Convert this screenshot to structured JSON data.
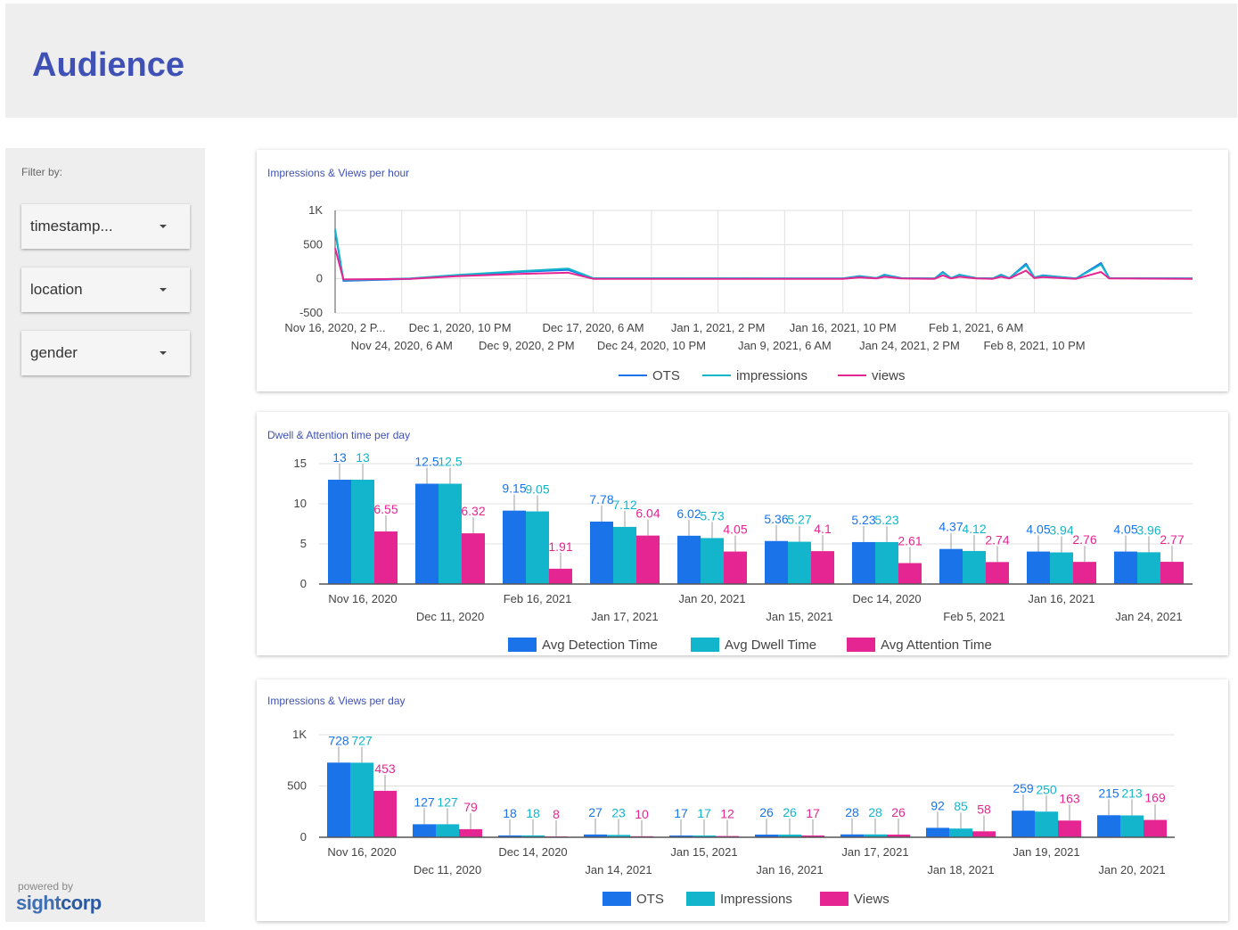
{
  "page": {
    "title": "Audience"
  },
  "sidebar": {
    "filter_label": "Filter by:",
    "filters": [
      {
        "label": "timestamp..."
      },
      {
        "label": "location"
      },
      {
        "label": "gender"
      }
    ],
    "powered_by": "powered by",
    "logo": {
      "part1": "sight",
      "part2": "corp"
    }
  },
  "colors": {
    "blue": "#1a73e8",
    "teal": "#12b5cb",
    "pink": "#e52592",
    "title": "#3f51b5"
  },
  "chart_data": [
    {
      "type": "line",
      "title": "Impressions & Views per hour",
      "y_ticks": [
        "1K",
        "500",
        "0",
        "-500"
      ],
      "ylim": [
        -500,
        1000
      ],
      "x_ticks_row1": [
        "Nov 16, 2020, 2 P...",
        "Dec 1, 2020, 10 PM",
        "Dec 17, 2020, 6 AM",
        "Jan 1, 2021, 2 PM",
        "Jan 16, 2021, 10 PM",
        "Feb 1, 2021, 6 AM"
      ],
      "x_ticks_row2": [
        "Nov 24, 2020, 6 AM",
        "Dec 9, 2020, 2 PM",
        "Dec 24, 2020, 10 PM",
        "Jan 9, 2021, 6 AM",
        "Jan 24, 2021, 2 PM",
        "Feb 8, 2021, 10 PM"
      ],
      "x_label_dates": [
        "2020-11-16",
        "2020-11-24",
        "2020-12-01",
        "2020-12-09",
        "2020-12-17",
        "2020-12-24",
        "2021-01-01",
        "2021-01-09",
        "2021-01-16",
        "2021-01-24",
        "2021-02-01",
        "2021-02-08"
      ],
      "grid": true,
      "legend": "bottom",
      "series": [
        {
          "name": "OTS",
          "color": "#1a73e8",
          "points": [
            [
              "2020-11-16",
              700
            ],
            [
              "2020-11-17",
              -30
            ],
            [
              "2020-11-25",
              0
            ],
            [
              "2020-12-01",
              50
            ],
            [
              "2020-12-08",
              100
            ],
            [
              "2020-12-14",
              130
            ],
            [
              "2020-12-17",
              5
            ],
            [
              "2021-01-16",
              5
            ],
            [
              "2021-01-18",
              40
            ],
            [
              "2021-01-20",
              10
            ],
            [
              "2021-01-21",
              60
            ],
            [
              "2021-01-23",
              10
            ],
            [
              "2021-01-27",
              5
            ],
            [
              "2021-01-28",
              100
            ],
            [
              "2021-01-29",
              10
            ],
            [
              "2021-01-30",
              60
            ],
            [
              "2021-02-01",
              10
            ],
            [
              "2021-02-03",
              5
            ],
            [
              "2021-02-04",
              60
            ],
            [
              "2021-02-05",
              10
            ],
            [
              "2021-02-07",
              220
            ],
            [
              "2021-02-08",
              20
            ],
            [
              "2021-02-09",
              50
            ],
            [
              "2021-02-13",
              5
            ],
            [
              "2021-02-16",
              230
            ],
            [
              "2021-02-17",
              10
            ],
            [
              "2021-02-27",
              5
            ]
          ]
        },
        {
          "name": "impressions",
          "color": "#12b5cb",
          "points": [
            [
              "2020-11-16",
              727
            ],
            [
              "2020-11-17",
              -20
            ],
            [
              "2020-11-25",
              5
            ],
            [
              "2020-12-01",
              60
            ],
            [
              "2020-12-08",
              110
            ],
            [
              "2020-12-14",
              150
            ],
            [
              "2020-12-17",
              10
            ],
            [
              "2021-01-16",
              5
            ],
            [
              "2021-01-18",
              35
            ],
            [
              "2021-01-20",
              10
            ],
            [
              "2021-01-21",
              55
            ],
            [
              "2021-01-23",
              10
            ],
            [
              "2021-01-27",
              5
            ],
            [
              "2021-01-28",
              90
            ],
            [
              "2021-01-29",
              10
            ],
            [
              "2021-01-30",
              55
            ],
            [
              "2021-02-01",
              10
            ],
            [
              "2021-02-03",
              5
            ],
            [
              "2021-02-04",
              55
            ],
            [
              "2021-02-05",
              10
            ],
            [
              "2021-02-07",
              200
            ],
            [
              "2021-02-08",
              20
            ],
            [
              "2021-02-09",
              45
            ],
            [
              "2021-02-13",
              5
            ],
            [
              "2021-02-16",
              210
            ],
            [
              "2021-02-17",
              10
            ],
            [
              "2021-02-27",
              5
            ]
          ]
        },
        {
          "name": "views",
          "color": "#e52592",
          "points": [
            [
              "2020-11-16",
              450
            ],
            [
              "2020-11-17",
              -10
            ],
            [
              "2020-11-25",
              0
            ],
            [
              "2020-12-01",
              40
            ],
            [
              "2020-12-08",
              70
            ],
            [
              "2020-12-14",
              90
            ],
            [
              "2020-12-17",
              0
            ],
            [
              "2021-01-16",
              0
            ],
            [
              "2021-01-18",
              20
            ],
            [
              "2021-01-20",
              5
            ],
            [
              "2021-01-21",
              30
            ],
            [
              "2021-01-23",
              5
            ],
            [
              "2021-01-27",
              0
            ],
            [
              "2021-01-28",
              50
            ],
            [
              "2021-01-29",
              5
            ],
            [
              "2021-01-30",
              30
            ],
            [
              "2021-02-01",
              5
            ],
            [
              "2021-02-03",
              0
            ],
            [
              "2021-02-04",
              30
            ],
            [
              "2021-02-05",
              5
            ],
            [
              "2021-02-07",
              120
            ],
            [
              "2021-02-08",
              10
            ],
            [
              "2021-02-09",
              25
            ],
            [
              "2021-02-13",
              0
            ],
            [
              "2021-02-16",
              100
            ],
            [
              "2021-02-17",
              5
            ],
            [
              "2021-02-27",
              0
            ]
          ]
        }
      ]
    },
    {
      "type": "bar",
      "title": "Dwell & Attention time per day",
      "y_ticks": [
        "15",
        "10",
        "5",
        "0"
      ],
      "ylim": [
        0,
        15
      ],
      "categories": [
        "Nov 16, 2020",
        "Dec 11, 2020",
        "Feb 16, 2021",
        "Jan 17, 2021",
        "Jan 20, 2021",
        "Jan 15, 2021",
        "Dec 14, 2020",
        "Feb 5, 2021",
        "Jan 16, 2021",
        "Jan 24, 2021"
      ],
      "grid": true,
      "legend": "bottom",
      "series": [
        {
          "name": "Avg Detection Time",
          "color": "#1a73e8",
          "values": [
            13,
            12.5,
            9.15,
            7.78,
            6.02,
            5.36,
            5.23,
            4.37,
            4.05,
            4.05
          ],
          "labels": [
            "13",
            "12.5",
            "9.15",
            "7.78",
            "6.02",
            "5.36",
            "5.23",
            "4.37",
            "4.05",
            "4.05"
          ]
        },
        {
          "name": "Avg Dwell Time",
          "color": "#12b5cb",
          "values": [
            13,
            12.5,
            9.05,
            7.12,
            5.73,
            5.27,
            5.23,
            4.12,
            3.94,
            3.96
          ],
          "labels": [
            "13",
            "12.5",
            "9.05",
            "7.12",
            "5.73",
            "5.27",
            "5.23",
            "4.12",
            "3.94",
            "3.96"
          ]
        },
        {
          "name": "Avg Attention Time",
          "color": "#e52592",
          "values": [
            6.55,
            6.32,
            1.91,
            6.04,
            4.05,
            4.1,
            2.61,
            2.74,
            2.76,
            2.77
          ],
          "labels": [
            "6.55",
            "6.32",
            "1.91",
            "6.04",
            "4.05",
            "4.1",
            "2.61",
            "2.74",
            "2.76",
            "2.77"
          ]
        }
      ]
    },
    {
      "type": "bar",
      "title": "Impressions & Views per day",
      "y_ticks": [
        "1K",
        "500",
        "0"
      ],
      "ylim": [
        0,
        1000
      ],
      "categories": [
        "Nov 16, 2020",
        "Dec 11, 2020",
        "Dec 14, 2020",
        "Jan 14, 2021",
        "Jan 15, 2021",
        "Jan 16, 2021",
        "Jan 17, 2021",
        "Jan 18, 2021",
        "Jan 19, 2021",
        "Jan 20, 2021"
      ],
      "grid": true,
      "legend": "bottom",
      "series": [
        {
          "name": "OTS",
          "color": "#1a73e8",
          "values": [
            728,
            127,
            18,
            27,
            17,
            26,
            28,
            92,
            259,
            215
          ],
          "labels": [
            "728",
            "127",
            "18",
            "27",
            "17",
            "26",
            "28",
            "92",
            "259",
            "215"
          ]
        },
        {
          "name": "Impressions",
          "color": "#12b5cb",
          "values": [
            727,
            127,
            18,
            23,
            17,
            26,
            28,
            85,
            250,
            213
          ],
          "labels": [
            "727",
            "127",
            "18",
            "23",
            "17",
            "26",
            "28",
            "85",
            "250",
            "213"
          ]
        },
        {
          "name": "Views",
          "color": "#e52592",
          "values": [
            453,
            79,
            8,
            10,
            12,
            17,
            26,
            58,
            163,
            169
          ],
          "labels": [
            "453",
            "79",
            "8",
            "10",
            "12",
            "17",
            "26",
            "58",
            "163",
            "169"
          ]
        }
      ]
    }
  ]
}
